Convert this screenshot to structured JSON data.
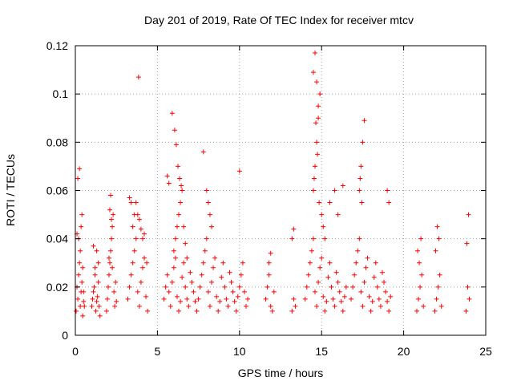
{
  "chart_data": {
    "type": "scatter",
    "title": "Day 201 of 2019, Rate Of TEC Index for receiver mtcv",
    "xlabel": "GPS time / hours",
    "ylabel": "ROTI / TECUs",
    "xlim": [
      0,
      25
    ],
    "ylim": [
      0,
      0.12
    ],
    "x_ticks": [
      "0",
      "5",
      "10",
      "15",
      "20",
      "25"
    ],
    "y_ticks": [
      "0",
      "0.02",
      "0.04",
      "0.06",
      "0.08",
      "0.1",
      "0.12"
    ],
    "x_tick_values": [
      0,
      5,
      10,
      15,
      20,
      25
    ],
    "y_tick_values": [
      0,
      0.02,
      0.04,
      0.06,
      0.08,
      0.1,
      0.12
    ],
    "grid": true,
    "marker": "+",
    "color": "#ff0000",
    "series": [
      {
        "x": [
          0.05,
          0.1,
          0.15,
          0.2,
          0.25,
          0.3,
          0.35,
          0.4,
          0.45,
          0.5,
          0.3,
          0.35,
          0.4,
          0.2,
          0.45,
          0.1,
          0.25,
          0.15,
          0.5,
          0.55,
          1.0,
          1.05,
          1.1,
          1.15,
          1.2,
          1.25,
          1.3,
          1.35,
          1.4,
          1.45,
          1.5,
          1.2,
          1.3,
          1.4,
          1.1,
          1.9,
          1.95,
          2.0,
          2.05,
          2.1,
          2.15,
          2.2,
          2.25,
          2.3,
          2.35,
          2.4,
          2.45,
          2.5,
          2.1,
          2.15,
          2.2,
          2.05,
          2.25,
          3.2,
          3.3,
          3.4,
          3.5,
          3.6,
          3.7,
          3.8,
          3.9,
          4.0,
          4.1,
          4.2,
          4.3,
          4.4,
          3.5,
          3.6,
          3.7,
          3.8,
          3.9,
          4.0,
          4.1,
          3.4,
          3.3,
          3.85,
          4.2,
          4.35,
          5.4,
          5.5,
          5.6,
          5.7,
          5.8,
          5.9,
          6.0,
          6.1,
          6.2,
          6.3,
          6.4,
          6.5,
          6.6,
          6.7,
          6.8,
          6.9,
          7.0,
          7.1,
          7.2,
          7.3,
          7.4,
          6.0,
          6.1,
          6.2,
          6.3,
          6.4,
          6.5,
          6.6,
          6.7,
          6.8,
          5.9,
          6.05,
          6.15,
          6.25,
          6.35,
          6.45,
          5.6,
          5.7,
          7.5,
          7.6,
          7.7,
          7.8,
          7.9,
          8.0,
          8.1,
          8.2,
          8.3,
          8.4,
          8.5,
          8.6,
          8.7,
          8.8,
          8.9,
          9.0,
          9.1,
          9.2,
          9.3,
          9.4,
          9.5,
          9.6,
          9.7,
          9.8,
          9.9,
          10.0,
          10.1,
          10.2,
          10.3,
          10.4,
          10.5,
          8.0,
          8.1,
          8.2,
          7.8,
          8.3,
          10.0,
          11.6,
          11.7,
          11.8,
          11.9,
          12.0,
          12.1,
          11.8,
          11.9,
          13.2,
          13.3,
          13.4,
          13.2,
          13.3,
          14.0,
          14.1,
          14.2,
          14.3,
          14.4,
          14.5,
          14.6,
          14.7,
          14.8,
          14.9,
          15.0,
          15.1,
          15.2,
          15.3,
          15.4,
          15.5,
          15.6,
          15.7,
          15.8,
          15.9,
          16.0,
          16.1,
          16.2,
          16.3,
          16.4,
          16.5,
          14.5,
          14.6,
          14.7,
          14.8,
          14.9,
          14.5,
          14.6,
          14.7,
          14.8,
          14.65,
          14.75,
          14.55,
          14.85,
          15.0,
          15.1,
          15.2,
          15.5,
          15.8,
          16.0,
          16.3,
          16.8,
          16.9,
          17.0,
          17.1,
          17.2,
          17.3,
          17.4,
          17.5,
          17.6,
          17.7,
          17.8,
          17.9,
          18.0,
          18.1,
          18.2,
          18.3,
          18.4,
          18.5,
          18.6,
          18.7,
          18.8,
          18.9,
          19.0,
          19.1,
          19.2,
          17.3,
          17.4,
          17.5,
          17.6,
          17.35,
          17.45,
          19.0,
          19.1,
          20.8,
          20.9,
          21.0,
          21.1,
          21.2,
          20.85,
          20.95,
          21.05,
          21.9,
          22.0,
          22.1,
          22.2,
          22.3,
          21.95,
          22.05,
          22.15,
          23.8,
          23.9,
          24.0,
          23.85,
          23.95
        ],
        "y": [
          0.01,
          0.02,
          0.015,
          0.025,
          0.03,
          0.012,
          0.018,
          0.022,
          0.008,
          0.014,
          0.035,
          0.045,
          0.05,
          0.04,
          0.028,
          0.042,
          0.069,
          0.065,
          0.018,
          0.012,
          0.012,
          0.015,
          0.018,
          0.02,
          0.025,
          0.01,
          0.014,
          0.016,
          0.022,
          0.012,
          0.008,
          0.028,
          0.035,
          0.03,
          0.037,
          0.01,
          0.015,
          0.02,
          0.025,
          0.03,
          0.035,
          0.04,
          0.045,
          0.05,
          0.018,
          0.012,
          0.022,
          0.014,
          0.052,
          0.058,
          0.048,
          0.032,
          0.028,
          0.015,
          0.02,
          0.025,
          0.03,
          0.035,
          0.04,
          0.018,
          0.012,
          0.022,
          0.028,
          0.032,
          0.016,
          0.01,
          0.045,
          0.05,
          0.055,
          0.05,
          0.048,
          0.044,
          0.04,
          0.055,
          0.057,
          0.107,
          0.042,
          0.03,
          0.015,
          0.02,
          0.025,
          0.018,
          0.012,
          0.022,
          0.028,
          0.032,
          0.016,
          0.01,
          0.014,
          0.024,
          0.03,
          0.02,
          0.015,
          0.012,
          0.026,
          0.022,
          0.018,
          0.014,
          0.01,
          0.035,
          0.04,
          0.045,
          0.05,
          0.055,
          0.06,
          0.045,
          0.038,
          0.032,
          0.092,
          0.085,
          0.079,
          0.07,
          0.065,
          0.062,
          0.066,
          0.063,
          0.015,
          0.02,
          0.025,
          0.03,
          0.035,
          0.04,
          0.018,
          0.012,
          0.022,
          0.028,
          0.032,
          0.016,
          0.01,
          0.014,
          0.024,
          0.03,
          0.02,
          0.015,
          0.012,
          0.026,
          0.022,
          0.018,
          0.014,
          0.01,
          0.016,
          0.02,
          0.025,
          0.03,
          0.018,
          0.012,
          0.015,
          0.06,
          0.055,
          0.05,
          0.076,
          0.045,
          0.068,
          0.015,
          0.02,
          0.025,
          0.012,
          0.01,
          0.018,
          0.03,
          0.034,
          0.01,
          0.015,
          0.012,
          0.04,
          0.044,
          0.015,
          0.02,
          0.025,
          0.03,
          0.035,
          0.04,
          0.018,
          0.012,
          0.022,
          0.028,
          0.032,
          0.016,
          0.01,
          0.014,
          0.024,
          0.03,
          0.02,
          0.015,
          0.012,
          0.026,
          0.022,
          0.018,
          0.014,
          0.01,
          0.016,
          0.02,
          0.06,
          0.07,
          0.08,
          0.09,
          0.1,
          0.109,
          0.117,
          0.105,
          0.095,
          0.088,
          0.075,
          0.065,
          0.055,
          0.05,
          0.045,
          0.04,
          0.055,
          0.06,
          0.05,
          0.062,
          0.015,
          0.02,
          0.025,
          0.03,
          0.035,
          0.04,
          0.018,
          0.012,
          0.022,
          0.028,
          0.032,
          0.016,
          0.01,
          0.014,
          0.024,
          0.03,
          0.02,
          0.015,
          0.012,
          0.026,
          0.022,
          0.018,
          0.014,
          0.01,
          0.016,
          0.06,
          0.07,
          0.08,
          0.089,
          0.065,
          0.055,
          0.06,
          0.055,
          0.01,
          0.015,
          0.02,
          0.025,
          0.012,
          0.035,
          0.03,
          0.04,
          0.01,
          0.015,
          0.02,
          0.025,
          0.012,
          0.035,
          0.045,
          0.04,
          0.01,
          0.02,
          0.015,
          0.038,
          0.05
        ]
      }
    ]
  }
}
